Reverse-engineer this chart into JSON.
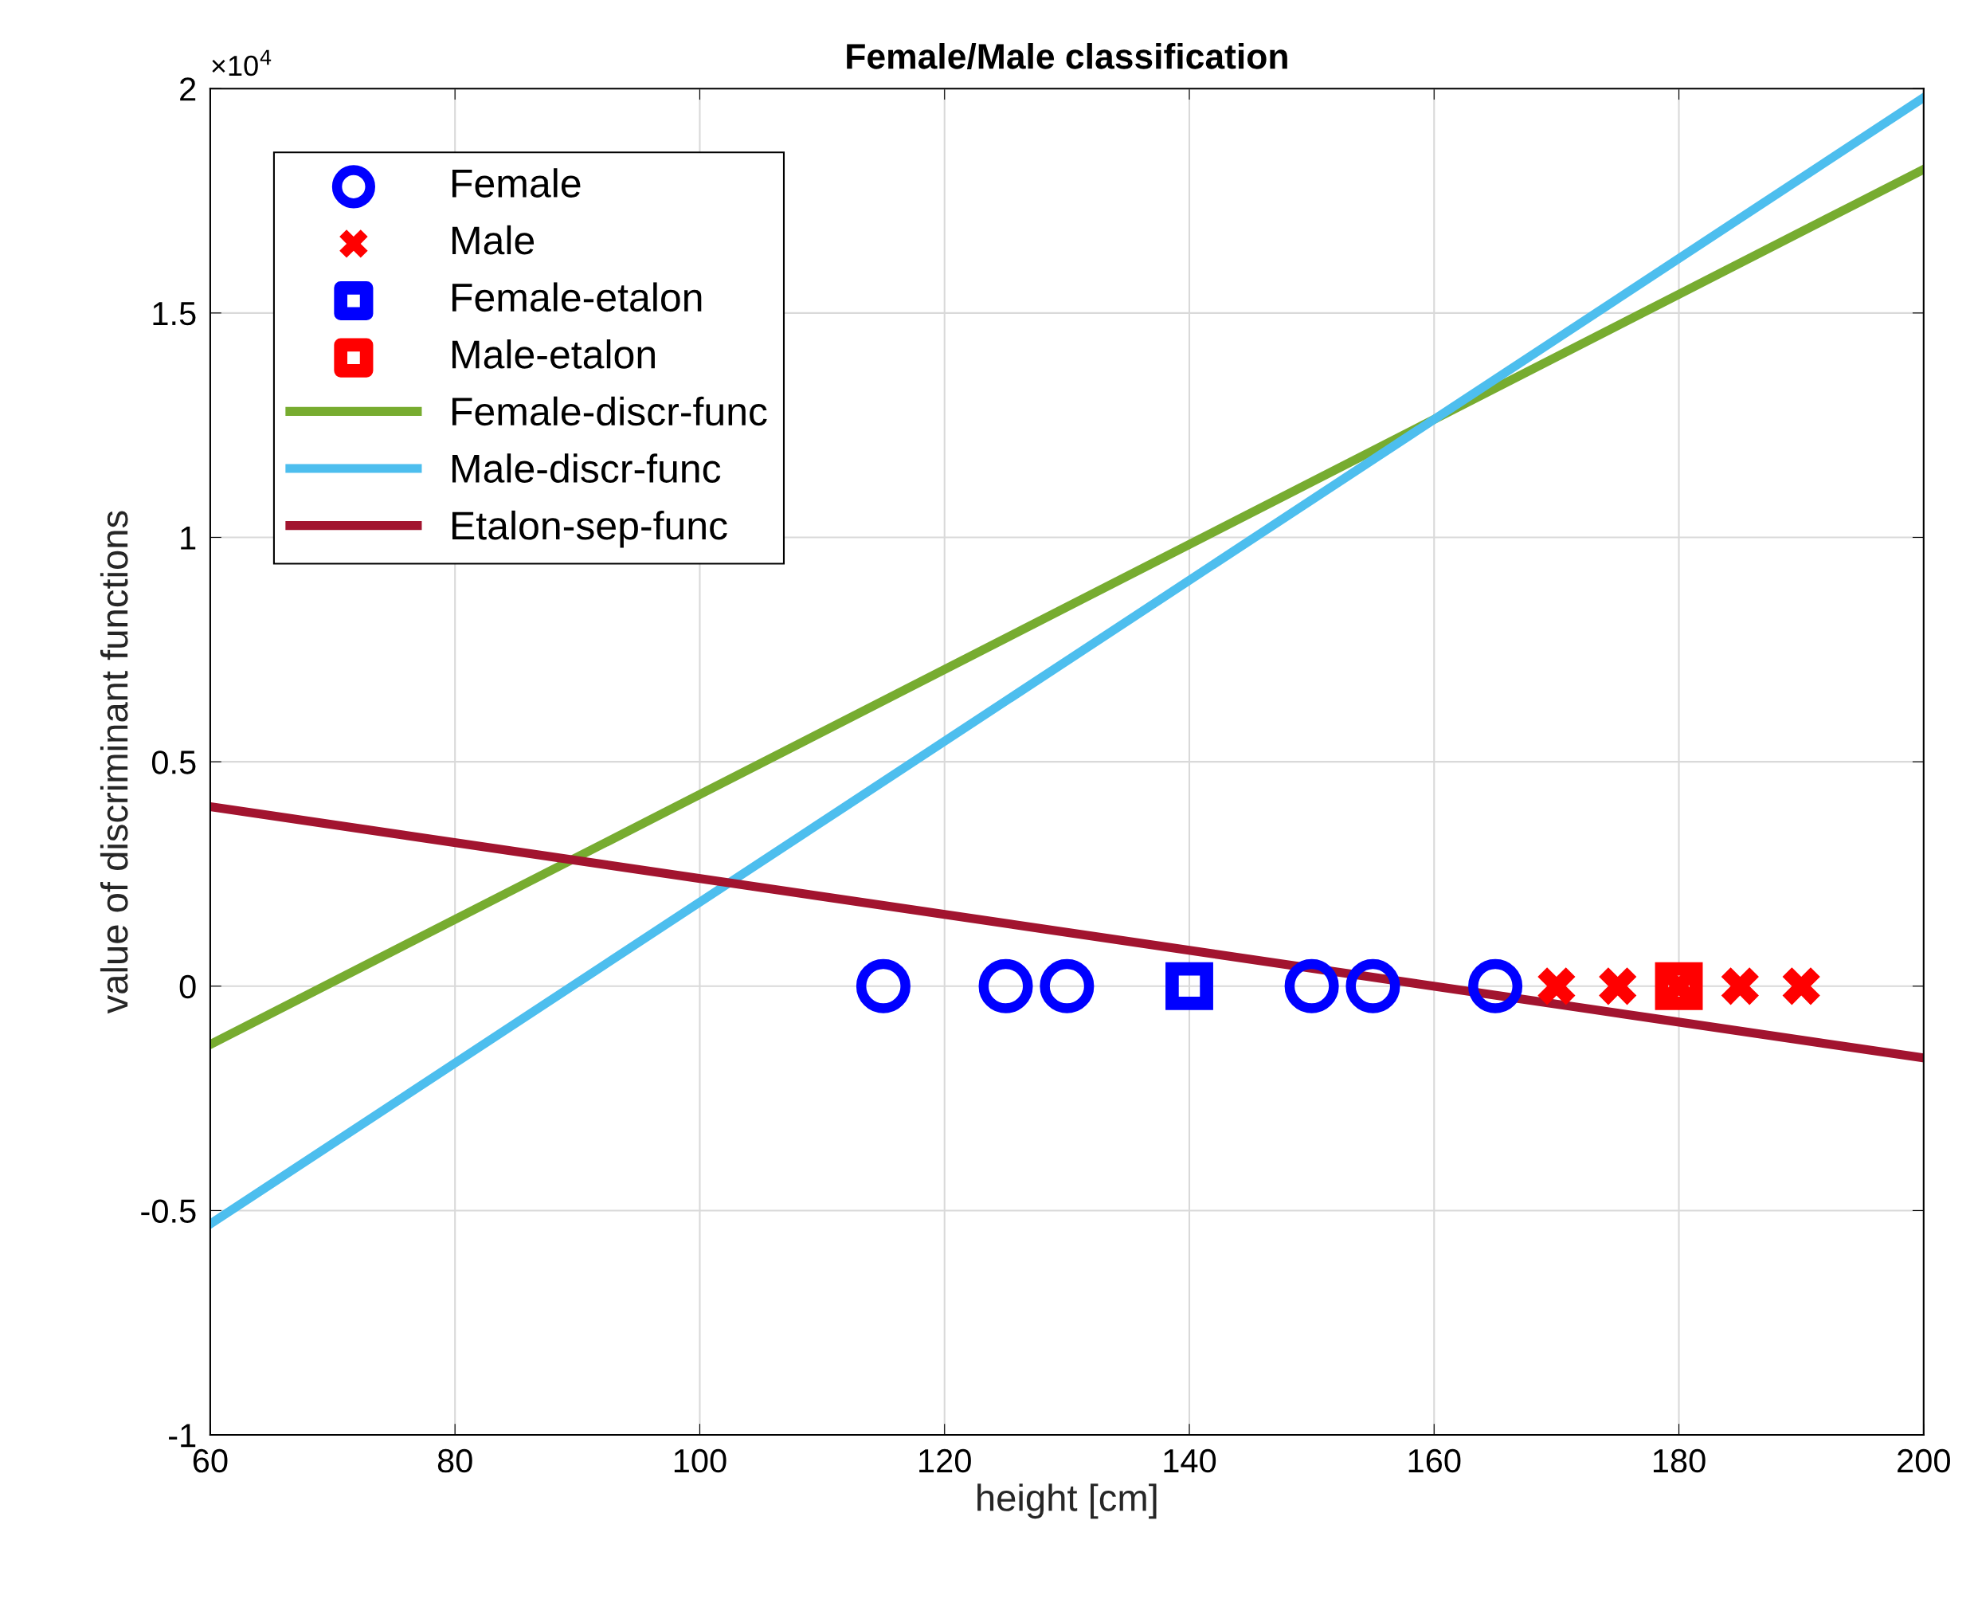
{
  "chart_data": {
    "type": "scatter",
    "title": "Female/Male classification",
    "xlabel": "height [cm]",
    "ylabel": "value of discriminant functions",
    "annotations": [
      "×10$^{4}$"
    ],
    "series": [
      {
        "name": "Female",
        "marker": "circle",
        "color": "#0000ff",
        "x": [
          115,
          125,
          130,
          150,
          155,
          165
        ],
        "values": [
          0,
          0,
          0,
          0,
          0,
          0
        ]
      },
      {
        "name": "Male",
        "marker": "cross",
        "color": "#ff0000",
        "x": [
          170,
          175,
          180,
          185,
          190
        ],
        "values": [
          0,
          0,
          0,
          0,
          0
        ]
      },
      {
        "name": "Female-etalon",
        "marker": "square",
        "color": "#0000ff",
        "x": [
          140
        ],
        "values": [
          0
        ]
      },
      {
        "name": "Male-etalon",
        "marker": "square",
        "color": "#ff0000",
        "x": [
          180
        ],
        "values": [
          0
        ]
      },
      {
        "name": "Female-discr-func",
        "type": "line",
        "color": "#77ac30",
        "x": [
          60,
          200
        ],
        "values": [
          -0.13,
          1.82
        ]
      },
      {
        "name": "Male-discr-func",
        "type": "line",
        "color": "#4dbeee",
        "x": [
          60,
          200
        ],
        "values": [
          -0.53,
          1.98
        ]
      },
      {
        "name": "Etalon-sep-func",
        "type": "line",
        "color": "#a2142f",
        "x": [
          60,
          200
        ],
        "values": [
          0.4,
          -0.16
        ]
      }
    ],
    "xlim": [
      60,
      200
    ],
    "xticks": [
      60,
      80,
      100,
      120,
      140,
      160,
      180,
      200
    ],
    "ylim": [
      -1,
      2
    ],
    "yticks": [
      -1,
      -0.5,
      0,
      0.5,
      1,
      1.5,
      2
    ],
    "grid": true,
    "legend": "top left"
  }
}
